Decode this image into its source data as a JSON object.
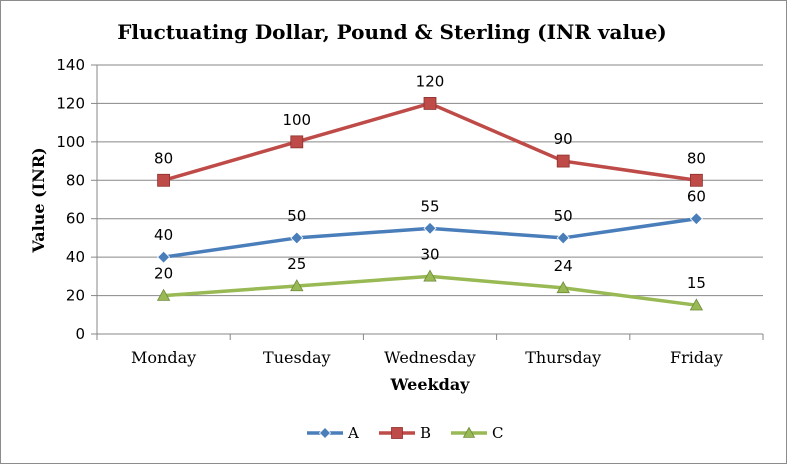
{
  "chart_data": {
    "type": "line",
    "title": "Fluctuating Dollar, Pound & Sterling (INR value)",
    "xlabel": "Weekday",
    "ylabel": "Value (INR)",
    "categories": [
      "Monday",
      "Tuesday",
      "Wednesday",
      "Thursday",
      "Friday"
    ],
    "ylim": [
      0,
      140
    ],
    "yticks": [
      0,
      20,
      40,
      60,
      80,
      100,
      120,
      140
    ],
    "grid": true,
    "legend_position": "bottom",
    "series": [
      {
        "name": "A",
        "values": [
          40,
          50,
          55,
          50,
          60
        ],
        "color": "#4a7ebb",
        "marker": "diamond"
      },
      {
        "name": "B",
        "values": [
          80,
          100,
          120,
          90,
          80
        ],
        "color": "#be4b48",
        "marker": "square"
      },
      {
        "name": "C",
        "values": [
          20,
          25,
          30,
          24,
          15
        ],
        "color": "#98b954",
        "marker": "triangle"
      }
    ]
  }
}
